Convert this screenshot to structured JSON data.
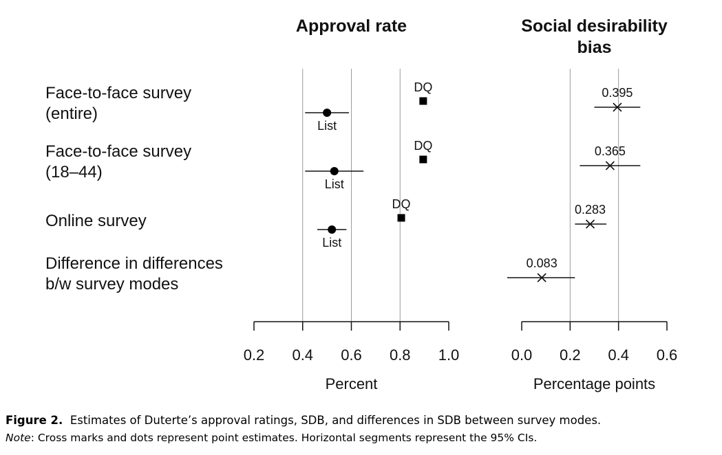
{
  "chart_data": [
    {
      "type": "scatter",
      "title": "Approval rate",
      "xlabel": "Percent",
      "xlim": [
        0.2,
        1.0
      ],
      "xticks": [
        "0.2",
        "0.4",
        "0.6",
        "0.8",
        "1.0"
      ],
      "grid": true,
      "categories": [
        "Face-to-face survey (entire)",
        "Face-to-face survey (18–44)",
        "Online survey"
      ],
      "series": [
        {
          "name": "List",
          "marker": "circle",
          "points": [
            {
              "category": "Face-to-face survey (entire)",
              "estimate": 0.5,
              "ci": [
                0.41,
                0.59
              ]
            },
            {
              "category": "Face-to-face survey (18–44)",
              "estimate": 0.53,
              "ci": [
                0.41,
                0.65
              ]
            },
            {
              "category": "Online survey",
              "estimate": 0.52,
              "ci": [
                0.46,
                0.58
              ]
            }
          ]
        },
        {
          "name": "DQ",
          "marker": "square",
          "points": [
            {
              "category": "Face-to-face survey (entire)",
              "estimate": 0.895
            },
            {
              "category": "Face-to-face survey (18–44)",
              "estimate": 0.895
            },
            {
              "category": "Online survey",
              "estimate": 0.805
            }
          ]
        }
      ]
    },
    {
      "type": "scatter",
      "title": "Social desirability bias",
      "xlabel": "Percentage points",
      "xlim": [
        0.0,
        0.6
      ],
      "xticks": [
        "0.0",
        "0.2",
        "0.4",
        "0.6"
      ],
      "grid": true,
      "categories": [
        "Face-to-face survey (entire)",
        "Face-to-face survey (18–44)",
        "Online survey",
        "Difference in differences b/w survey modes"
      ],
      "series": [
        {
          "marker": "cross",
          "points": [
            {
              "category": "Face-to-face survey (entire)",
              "estimate": 0.395,
              "label": "0.395",
              "ci": [
                0.3,
                0.49
              ]
            },
            {
              "category": "Face-to-face survey (18–44)",
              "estimate": 0.365,
              "label": "0.365",
              "ci": [
                0.24,
                0.49
              ]
            },
            {
              "category": "Online survey",
              "estimate": 0.283,
              "label": "0.283",
              "ci": [
                0.22,
                0.35
              ]
            },
            {
              "category": "Difference in differences b/w survey modes",
              "estimate": 0.083,
              "label": "0.083",
              "ci": [
                -0.06,
                0.22
              ]
            }
          ]
        }
      ]
    }
  ],
  "row_labels": [
    [
      "Face-to-face survey",
      "(entire)"
    ],
    [
      "Face-to-face survey",
      "(18–44)"
    ],
    [
      "Online survey"
    ],
    [
      "Difference in differences",
      "b/w survey modes"
    ]
  ],
  "caption": {
    "figure_label": "Figure 2.",
    "text": "Estimates of Duterte’s approval ratings, SDB, and differences in SDB between survey modes.",
    "note_label": "Note",
    "note_text": ": Cross marks and dots represent point estimates. Horizontal segments represent the 95% CIs."
  }
}
